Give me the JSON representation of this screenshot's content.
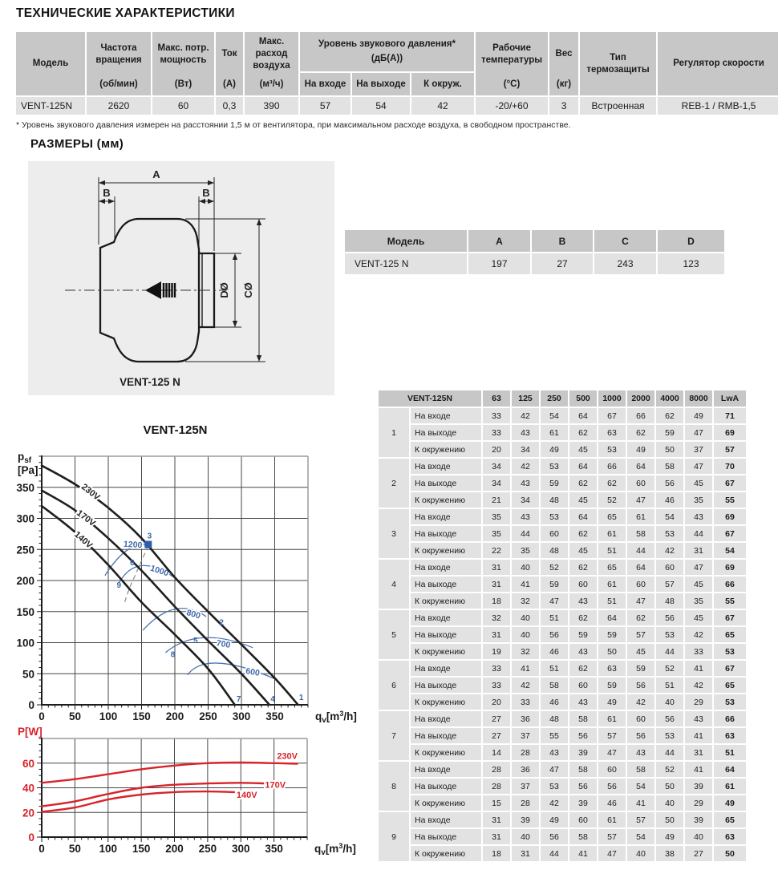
{
  "page_title": "ТЕХНИЧЕСКИЕ ХАРАКТЕРИСТИКИ",
  "spec": {
    "model": {
      "t": "Модель"
    },
    "speed": {
      "t": "Частота вращения",
      "u": "(об/мин)"
    },
    "power": {
      "t": "Макс. потр. мощность",
      "u": "(Вт)"
    },
    "current": {
      "t": "Ток",
      "u": "(А)"
    },
    "airflow": {
      "t": "Макс. расход воздуха",
      "u": "(м³/ч)"
    },
    "noise": {
      "t": "Уровень звукового давления*",
      "u": "(дБ(А))",
      "subs": [
        "На входе",
        "На выходе",
        "К окруж."
      ]
    },
    "temp": {
      "t": "Рабочие температуры",
      "u": "(°С)"
    },
    "weight": {
      "t": "Вес",
      "u": "(кг)"
    },
    "thermo": {
      "t": "Тип термозащиты"
    },
    "regulator": {
      "t": "Регулятор скорости"
    },
    "values": [
      "VENT-125N",
      "2620",
      "60",
      "0,3",
      "390",
      "57",
      "54",
      "42",
      "-20/+60",
      "3",
      "Встроенная",
      "REB-1 / RMB-1,5"
    ]
  },
  "footnote": "* Уровень звукового давления измерен на расстоянии 1,5 м от вентилятора, при максимальном расходе воздуха, в свободном пространстве.",
  "dims": {
    "heading": "РАЗМЕРЫ (мм)",
    "caption": "VENT-125 N",
    "dim_labels": [
      "A",
      "B",
      "B",
      "DØ",
      "CØ"
    ],
    "table": {
      "headers": [
        "Модель",
        "A",
        "B",
        "C",
        "D"
      ],
      "row": [
        "VENT-125 N",
        "197",
        "27",
        "243",
        "123"
      ]
    }
  },
  "noise_table": {
    "model_header": "VENT-125N",
    "freq_headers": [
      "63",
      "125",
      "250",
      "500",
      "1000",
      "2000",
      "4000",
      "8000",
      "LwA"
    ],
    "row_labels": [
      "На входе",
      "На выходе",
      "К окружению"
    ],
    "groups": [
      {
        "id": "1",
        "rows": [
          [
            33,
            42,
            54,
            64,
            67,
            66,
            62,
            49,
            71
          ],
          [
            33,
            43,
            61,
            62,
            63,
            62,
            59,
            47,
            69
          ],
          [
            20,
            34,
            49,
            45,
            53,
            49,
            50,
            37,
            57
          ]
        ]
      },
      {
        "id": "2",
        "rows": [
          [
            34,
            42,
            53,
            64,
            66,
            64,
            58,
            47,
            70
          ],
          [
            34,
            43,
            59,
            62,
            62,
            60,
            56,
            45,
            67
          ],
          [
            21,
            34,
            48,
            45,
            52,
            47,
            46,
            35,
            55
          ]
        ]
      },
      {
        "id": "3",
        "rows": [
          [
            35,
            43,
            53,
            64,
            65,
            61,
            54,
            43,
            69
          ],
          [
            35,
            44,
            60,
            62,
            61,
            58,
            53,
            44,
            67
          ],
          [
            22,
            35,
            48,
            45,
            51,
            44,
            42,
            31,
            54
          ]
        ]
      },
      {
        "id": "4",
        "rows": [
          [
            31,
            40,
            52,
            62,
            65,
            64,
            60,
            47,
            69
          ],
          [
            31,
            41,
            59,
            60,
            61,
            60,
            57,
            45,
            66
          ],
          [
            18,
            32,
            47,
            43,
            51,
            47,
            48,
            35,
            55
          ]
        ]
      },
      {
        "id": "5",
        "rows": [
          [
            32,
            40,
            51,
            62,
            64,
            62,
            56,
            45,
            67
          ],
          [
            31,
            40,
            56,
            59,
            59,
            57,
            53,
            42,
            65
          ],
          [
            19,
            32,
            46,
            43,
            50,
            45,
            44,
            33,
            53
          ]
        ]
      },
      {
        "id": "6",
        "rows": [
          [
            33,
            41,
            51,
            62,
            63,
            59,
            52,
            41,
            67
          ],
          [
            33,
            42,
            58,
            60,
            59,
            56,
            51,
            42,
            65
          ],
          [
            20,
            33,
            46,
            43,
            49,
            42,
            40,
            29,
            53
          ]
        ]
      },
      {
        "id": "7",
        "rows": [
          [
            27,
            36,
            48,
            58,
            61,
            60,
            56,
            43,
            66
          ],
          [
            27,
            37,
            55,
            56,
            57,
            56,
            53,
            41,
            63
          ],
          [
            14,
            28,
            43,
            39,
            47,
            43,
            44,
            31,
            51
          ]
        ]
      },
      {
        "id": "8",
        "rows": [
          [
            28,
            36,
            47,
            58,
            60,
            58,
            52,
            41,
            64
          ],
          [
            28,
            37,
            53,
            56,
            56,
            54,
            50,
            39,
            61
          ],
          [
            15,
            28,
            42,
            39,
            46,
            41,
            40,
            29,
            49
          ]
        ]
      },
      {
        "id": "9",
        "rows": [
          [
            31,
            39,
            49,
            60,
            61,
            57,
            50,
            39,
            65
          ],
          [
            31,
            40,
            56,
            58,
            57,
            54,
            49,
            40,
            63
          ],
          [
            18,
            31,
            44,
            41,
            47,
            40,
            38,
            27,
            50
          ]
        ]
      }
    ]
  },
  "chart_data": [
    {
      "type": "line",
      "title": "VENT-125N",
      "ylabel": "p sf [Pa]",
      "ylabel_parts": {
        "base": "p",
        "sub": "sf",
        "line2": "[Pa]"
      },
      "xlabel": "qv [m3/h]",
      "xlabel_parts": {
        "base": "q",
        "sub": "v",
        "mid": "[m",
        "sup": "3",
        "end": "/h]"
      },
      "xlim": [
        0,
        400
      ],
      "ylim": [
        0,
        400
      ],
      "xticks": [
        0,
        50,
        100,
        150,
        200,
        250,
        300,
        350
      ],
      "yticks": [
        0,
        50,
        100,
        150,
        200,
        250,
        300,
        350
      ],
      "xminor": 10,
      "yminor": 10,
      "grid": true,
      "legend_position": "on-curve",
      "curve_color": "#1f1f1f",
      "accent_blue": "#3d69a8",
      "series": [
        {
          "name": "230V",
          "label_pos": [
            74,
            343
          ],
          "label_rot": 38,
          "points": [
            [
              0,
              385
            ],
            [
              50,
              355
            ],
            [
              100,
              317
            ],
            [
              150,
              268
            ],
            [
              200,
              205
            ],
            [
              250,
              150
            ],
            [
              300,
              97
            ],
            [
              350,
              43
            ],
            [
              385,
              0
            ]
          ]
        },
        {
          "name": "170V",
          "label_pos": [
            67,
            301
          ],
          "label_rot": 37,
          "points": [
            [
              0,
              345
            ],
            [
              50,
              313
            ],
            [
              100,
              268
            ],
            [
              150,
              216
            ],
            [
              200,
              158
            ],
            [
              250,
              103
            ],
            [
              300,
              50
            ],
            [
              342,
              0
            ]
          ]
        },
        {
          "name": "140V",
          "label_pos": [
            63,
            266
          ],
          "label_rot": 41,
          "points": [
            [
              0,
              320
            ],
            [
              50,
              278
            ],
            [
              100,
              225
            ],
            [
              150,
              165
            ],
            [
              200,
              113
            ],
            [
              250,
              58
            ],
            [
              290,
              0
            ]
          ]
        }
      ],
      "speed_arcs": [
        {
          "label": "1200",
          "points": [
            [
              95,
              208
            ],
            [
              126,
              247
            ],
            [
              156,
              258
            ]
          ],
          "label_pos": [
            137,
            258
          ],
          "label_rot": 4
        },
        {
          "label": "1000",
          "points": [
            [
              116,
              196
            ],
            [
              152,
              224
            ],
            [
              204,
              201
            ]
          ],
          "label_pos": [
            177,
            216
          ],
          "label_rot": 18
        },
        {
          "label": "800",
          "points": [
            [
              152,
              120
            ],
            [
              200,
              154
            ],
            [
              247,
              142
            ]
          ],
          "label_pos": [
            228,
            146
          ],
          "label_rot": 16
        },
        {
          "label": "700",
          "points": [
            [
              186,
              84
            ],
            [
              243,
              108
            ],
            [
              317,
              92
            ]
          ],
          "label_pos": [
            273,
            98
          ],
          "label_rot": 10
        },
        {
          "label": "600",
          "points": [
            [
              219,
              48
            ],
            [
              267,
              67
            ],
            [
              354,
              40
            ]
          ],
          "label_pos": [
            317,
            53
          ],
          "label_rot": 10
        }
      ],
      "operating_points": [
        {
          "id": "1",
          "x": 390,
          "y": 12
        },
        {
          "id": "2",
          "x": 270,
          "y": 133
        },
        {
          "id": "3",
          "x": 162,
          "y": 272
        },
        {
          "id": "4",
          "x": 347,
          "y": 10
        },
        {
          "id": "5",
          "x": 231,
          "y": 104
        },
        {
          "id": "6",
          "x": 136,
          "y": 229
        },
        {
          "id": "7",
          "x": 296,
          "y": 10
        },
        {
          "id": "8",
          "x": 197,
          "y": 81
        },
        {
          "id": "9",
          "x": 116,
          "y": 193
        }
      ],
      "marker_point": [
        160,
        258
      ],
      "dashed_line": [
        [
          160,
          256
        ],
        [
          144,
          217
        ],
        [
          132,
          188
        ],
        [
          124,
          163
        ]
      ]
    },
    {
      "type": "line",
      "title": "",
      "ylabel": "P[W]",
      "xlabel": "qv [m3/h]",
      "xlabel_parts": {
        "base": "q",
        "sub": "v",
        "mid": "[m",
        "sup": "3",
        "end": "/h]"
      },
      "xlim": [
        0,
        400
      ],
      "ylim": [
        0,
        80
      ],
      "xticks": [
        0,
        50,
        100,
        150,
        200,
        250,
        300,
        350
      ],
      "yticks": [
        0,
        20,
        40,
        60
      ],
      "xminor": 10,
      "yminor": 5,
      "grid": true,
      "legend_position": "right-of-curve",
      "curve_color": "#d8232a",
      "series": [
        {
          "name": "230V",
          "label_pos": [
            370,
            66
          ],
          "label_rot": 0,
          "points": [
            [
              0,
              44
            ],
            [
              50,
              47
            ],
            [
              100,
              51
            ],
            [
              150,
              55
            ],
            [
              200,
              58
            ],
            [
              250,
              60
            ],
            [
              300,
              60.5
            ],
            [
              350,
              60
            ],
            [
              385,
              59.5
            ]
          ]
        },
        {
          "name": "170V",
          "label_pos": [
            352,
            42.5
          ],
          "label_rot": 0,
          "points": [
            [
              0,
              25
            ],
            [
              50,
              29
            ],
            [
              100,
              35
            ],
            [
              150,
              40
            ],
            [
              200,
              42.5
            ],
            [
              250,
              43.5
            ],
            [
              300,
              44
            ],
            [
              338,
              43.5
            ]
          ]
        },
        {
          "name": "140V",
          "label_pos": [
            309,
            34.5
          ],
          "label_rot": 0,
          "points": [
            [
              0,
              20.5
            ],
            [
              50,
              24
            ],
            [
              100,
              30.5
            ],
            [
              150,
              34.5
            ],
            [
              200,
              36.5
            ],
            [
              250,
              37
            ],
            [
              290,
              36.5
            ]
          ]
        }
      ]
    }
  ]
}
